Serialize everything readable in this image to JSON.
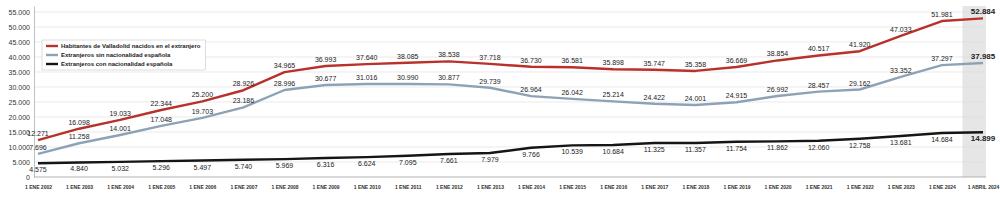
{
  "chart_data": {
    "type": "line",
    "categories": [
      "1 ENE 2002",
      "1 ENE 2003",
      "1 ENE 2004",
      "1 ENE 2005",
      "1 ENE 2006",
      "1 ENE 2007",
      "1 ENE 2008",
      "1 ENE 2009",
      "1 ENE 2010",
      "1 ENE 2011",
      "1 ENE 2012",
      "1 ENE 2013",
      "1 ENE 2014",
      "1 ENE 2015",
      "1 ENE 2016",
      "1 ENE 2017",
      "1 ENE 2018",
      "1 ENE 2019",
      "1 ENE 2020",
      "1 ENE 2021",
      "1 ENE 2022",
      "1 ENE 2023",
      "1 ENE 2024",
      "1 ABRIL 2024"
    ],
    "series": [
      {
        "name": "Habitantes de Valladolid nacidos en el extranjero",
        "color": "#b8312b",
        "values": [
          12271,
          16098,
          19033,
          22344,
          25200,
          28926,
          34965,
          36993,
          37640,
          38085,
          38538,
          37718,
          36730,
          36581,
          35898,
          35747,
          35358,
          36669,
          38854,
          40517,
          41920,
          47033,
          51981,
          52884
        ],
        "value_labels": [
          "12.271",
          "16.098",
          "19.033",
          "22.344",
          "25.200",
          "28.926",
          "34.965",
          "36.993",
          "37.640",
          "38.085",
          "38.538",
          "37.718",
          "36.730",
          "36.581",
          "35.898",
          "35.747",
          "35.358",
          "36.669",
          "38.854",
          "40.517",
          "41.920",
          "47.033",
          "51.981",
          "52.884"
        ]
      },
      {
        "name": "Extranjeros sin nacionalidad española",
        "color": "#8ea2b6",
        "values": [
          7696,
          11258,
          14001,
          17048,
          19703,
          23186,
          28996,
          30677,
          31016,
          30990,
          30877,
          29739,
          26964,
          26042,
          25214,
          24422,
          24001,
          24915,
          26992,
          28457,
          29162,
          33352,
          37297,
          37985
        ],
        "value_labels": [
          "7.696",
          "11.258",
          "14.001",
          "17.048",
          "19.703",
          "23.186",
          "28.996",
          "30.677",
          "31.016",
          "30.990",
          "30.877",
          "29.739",
          "26.964",
          "26.042",
          "25.214",
          "24.422",
          "24.001",
          "24.915",
          "26.992",
          "28.457",
          "29.162",
          "33.352",
          "37.297",
          "37.985"
        ]
      },
      {
        "name": "Extranjeros con nacionalidad española",
        "color": "#151515",
        "values": [
          4575,
          4840,
          5032,
          5296,
          5497,
          5740,
          5969,
          6316,
          6624,
          7095,
          7661,
          7979,
          9766,
          10539,
          10684,
          11325,
          11357,
          11754,
          11862,
          12060,
          12758,
          13681,
          14684,
          14899
        ],
        "value_labels": [
          "4.575",
          "4.840",
          "5.032",
          "5.296",
          "5.497",
          "5.740",
          "5.969",
          "6.316",
          "6.624",
          "7.095",
          "7.661",
          "7.979",
          "9.766",
          "10.539",
          "10.684",
          "11.325",
          "11.357",
          "11.754",
          "11.862",
          "12.060",
          "12.758",
          "13.681",
          "14.684",
          "14.899"
        ]
      }
    ],
    "ylim": [
      0,
      57000
    ],
    "yticks": [
      0,
      {
        "value": 5000,
        "label": "5.000"
      },
      {
        "value": 10000,
        "label": "10.000"
      },
      {
        "value": 15000,
        "label": "15.000"
      },
      {
        "value": 20000,
        "label": "20.000"
      },
      {
        "value": 25000,
        "label": "25.000"
      },
      {
        "value": 30000,
        "label": "30.000"
      },
      {
        "value": 35000,
        "label": "35.000"
      },
      {
        "value": 40000,
        "label": "40.000"
      },
      {
        "value": 45000,
        "label": "45.000"
      },
      {
        "value": 50000,
        "label": "50.000"
      },
      {
        "value": 55000,
        "label": "55.000"
      }
    ],
    "grid": true,
    "legend": "upper left",
    "data_labels": true
  }
}
